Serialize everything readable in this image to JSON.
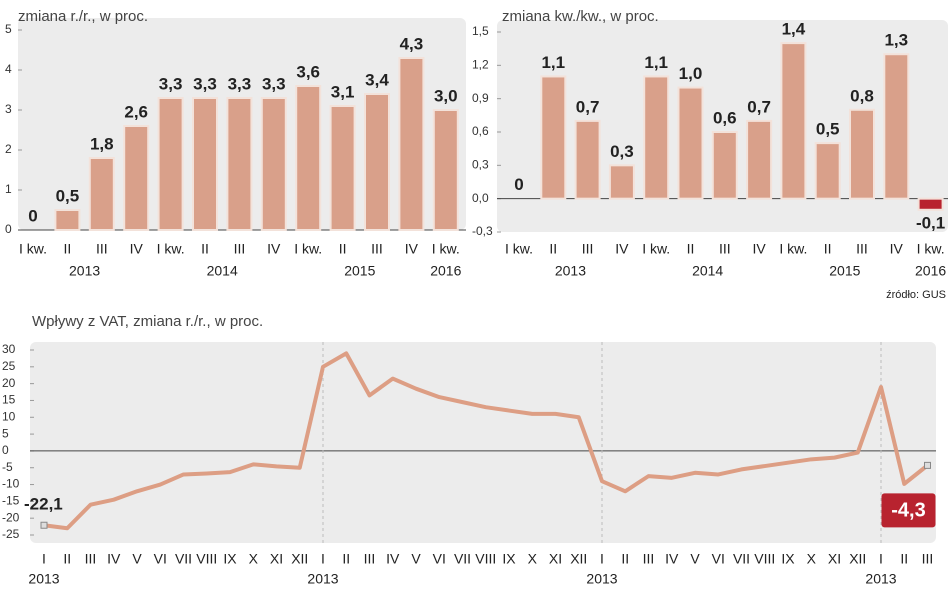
{
  "chart_data": [
    {
      "type": "bar",
      "subtitle": "zmiana r./r., w proc.",
      "categories": [
        "I kw.",
        "II",
        "III",
        "IV",
        "I kw.",
        "II",
        "III",
        "IV",
        "I kw.",
        "II",
        "III",
        "IV",
        "I kw."
      ],
      "years": [
        "2013",
        "2014",
        "2015",
        "2016"
      ],
      "values": [
        0,
        0.5,
        1.8,
        2.6,
        3.3,
        3.3,
        3.3,
        3.3,
        3.6,
        3.1,
        3.4,
        4.3,
        3.0
      ],
      "value_labels": [
        "0",
        "0,5",
        "1,8",
        "2,6",
        "3,3",
        "3,3",
        "3,3",
        "3,3",
        "3,6",
        "3,1",
        "3,4",
        "4,3",
        "3,0"
      ],
      "color": "#d9a08a",
      "ylim": [
        0,
        5
      ],
      "yticks": [
        0,
        1,
        2,
        3,
        4,
        5
      ]
    },
    {
      "type": "bar",
      "subtitle": "zmiana kw./kw., w proc.",
      "source": "źródło: GUS",
      "categories": [
        "I kw.",
        "II",
        "III",
        "IV",
        "I kw.",
        "II",
        "III",
        "IV",
        "I kw.",
        "II",
        "III",
        "IV",
        "I kw."
      ],
      "years": [
        "2013",
        "2014",
        "2015",
        "2016"
      ],
      "values": [
        0,
        1.1,
        0.7,
        0.3,
        1.1,
        1.0,
        0.6,
        0.7,
        1.4,
        0.5,
        0.8,
        1.3,
        -0.1
      ],
      "value_labels": [
        "0",
        "1,1",
        "0,7",
        "0,3",
        "1,1",
        "1,0",
        "0,6",
        "0,7",
        "1,4",
        "0,5",
        "0,8",
        "1,3",
        "-0,1"
      ],
      "colors": [
        "#d9a08a",
        "#d9a08a",
        "#d9a08a",
        "#d9a08a",
        "#d9a08a",
        "#d9a08a",
        "#d9a08a",
        "#d9a08a",
        "#d9a08a",
        "#d9a08a",
        "#d9a08a",
        "#d9a08a",
        "#b8232f"
      ],
      "ylim": [
        -0.3,
        1.5
      ],
      "yticks": [
        {
          "value": 1.5,
          "label": "1,5"
        },
        {
          "value": 1.2,
          "label": "1,2"
        },
        {
          "value": 0.9,
          "label": "0,9"
        },
        {
          "value": 0.6,
          "label": "0,6"
        },
        {
          "value": 0.3,
          "label": "0,3"
        },
        {
          "value": 0.0,
          "label": "0,0"
        },
        {
          "value": -0.3,
          "label": "-0,3"
        }
      ]
    },
    {
      "type": "line",
      "subtitle": "Wpływy z VAT, zmiana r./r., w proc.",
      "categories": [
        "I",
        "II",
        "III",
        "IV",
        "V",
        "VI",
        "VII",
        "VIII",
        "IX",
        "X",
        "XI",
        "XII",
        "I",
        "II",
        "III",
        "IV",
        "V",
        "VI",
        "VII",
        "VIII",
        "IX",
        "X",
        "XI",
        "XII",
        "I",
        "II",
        "III",
        "IV",
        "V",
        "VI",
        "VII",
        "VIII",
        "IX",
        "X",
        "XI",
        "XII",
        "I",
        "II",
        "III"
      ],
      "years": [
        "2013",
        "2013",
        "2013",
        "2013"
      ],
      "values": [
        -22.1,
        -23,
        -16,
        -14.5,
        -12,
        -10,
        -7,
        -6.7,
        -6.3,
        -4,
        -4.6,
        -5,
        25,
        29,
        16.5,
        21.5,
        18.5,
        16,
        14.5,
        13,
        12,
        11,
        11,
        10,
        -9,
        -12,
        -7.5,
        -8,
        -6.5,
        -7,
        -5.5,
        -4.5,
        -3.5,
        -2.5,
        -2,
        -0.5,
        19,
        -9.8,
        -4.3
      ],
      "value_labels": [
        "-22,1",
        null,
        null,
        null,
        null,
        null,
        null,
        null,
        null,
        null,
        null,
        null,
        null,
        null,
        null,
        null,
        null,
        null,
        null,
        null,
        null,
        null,
        null,
        null,
        null,
        null,
        null,
        null,
        null,
        null,
        null,
        null,
        null,
        null,
        null,
        null,
        null,
        null,
        "-4,3"
      ],
      "color": "#dd9e84",
      "highlight_color": "#b8232f",
      "ylim": [
        -25,
        30
      ],
      "yticks": [
        -25,
        -20,
        -15,
        -10,
        -5,
        0,
        5,
        10,
        15,
        20,
        25,
        30
      ]
    }
  ]
}
